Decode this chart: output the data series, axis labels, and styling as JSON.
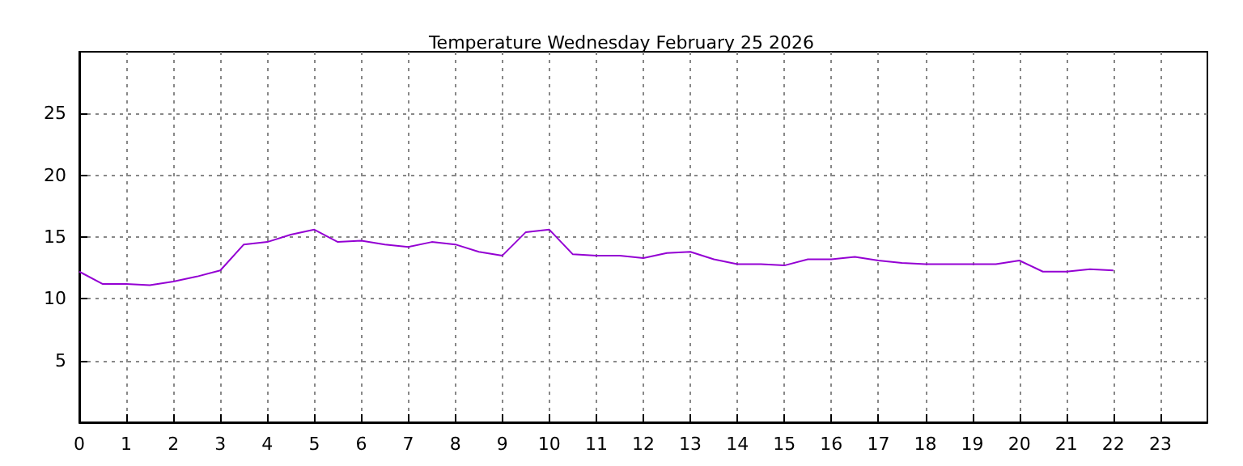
{
  "chart_data": {
    "type": "line",
    "title": "Temperature Wednesday February 25 2026",
    "x": [
      0,
      0.5,
      1,
      1.5,
      2,
      2.5,
      3,
      3.5,
      4,
      4.5,
      5,
      5.5,
      6,
      6.5,
      7,
      7.5,
      8,
      8.5,
      9,
      9.5,
      10,
      10.5,
      11,
      11.5,
      12,
      12.5,
      13,
      13.5,
      14,
      14.5,
      15,
      15.5,
      16,
      16.5,
      17,
      17.5,
      18,
      18.5,
      19,
      19.5,
      20,
      20.5,
      21,
      21.5,
      22
    ],
    "series": [
      {
        "color": "#9400d3",
        "values": [
          12.2,
          11.2,
          11.2,
          11.1,
          11.4,
          11.8,
          12.3,
          14.4,
          14.6,
          15.2,
          15.6,
          14.6,
          14.7,
          14.4,
          14.2,
          14.6,
          14.4,
          13.8,
          13.5,
          15.4,
          15.6,
          13.6,
          13.5,
          13.5,
          13.3,
          13.7,
          13.8,
          13.2,
          12.8,
          12.8,
          12.7,
          13.2,
          13.2,
          13.4,
          13.1,
          12.9,
          12.8,
          12.8,
          12.8,
          12.8,
          13.1,
          12.2,
          12.2,
          12.4,
          12.3
        ]
      }
    ],
    "xlim": [
      0,
      24
    ],
    "xticks": [
      0,
      1,
      2,
      3,
      4,
      5,
      6,
      7,
      8,
      9,
      10,
      11,
      12,
      13,
      14,
      15,
      16,
      17,
      18,
      19,
      20,
      21,
      22,
      23
    ],
    "ylim": [
      0,
      30
    ],
    "yticks": [
      5,
      10,
      15,
      20,
      25
    ],
    "grid": true,
    "marker": "none",
    "line_style": "solid"
  }
}
